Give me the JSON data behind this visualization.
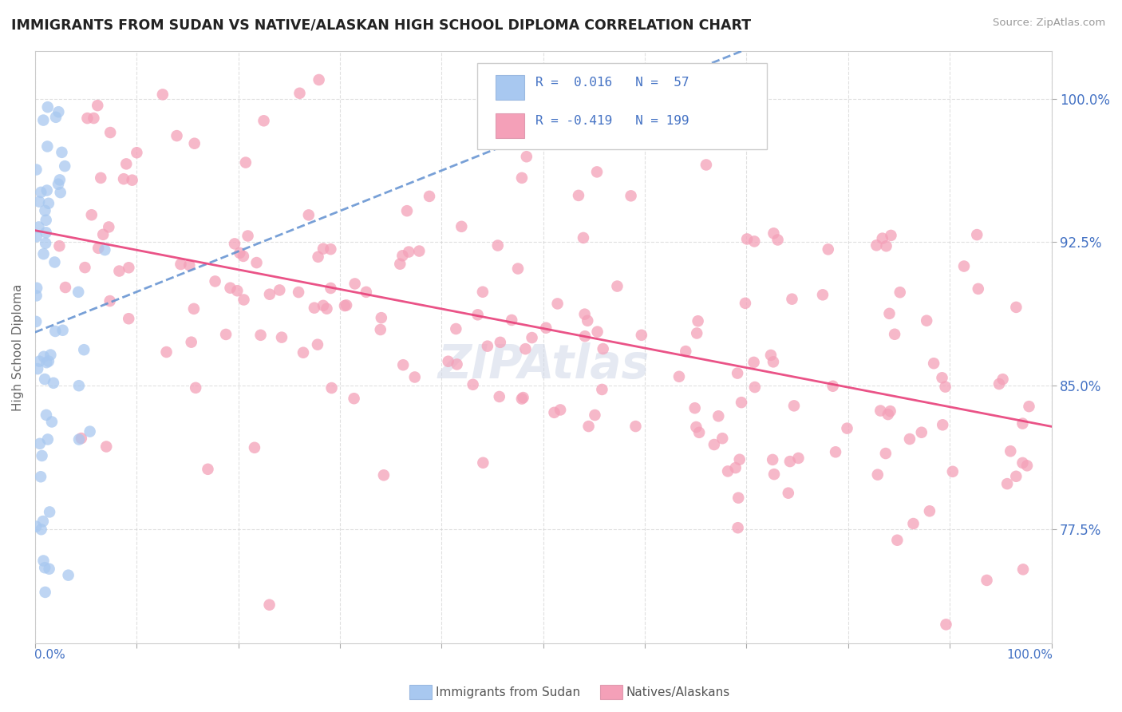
{
  "title": "IMMIGRANTS FROM SUDAN VS NATIVE/ALASKAN HIGH SCHOOL DIPLOMA CORRELATION CHART",
  "source": "Source: ZipAtlas.com",
  "ylabel": "High School Diploma",
  "ytick_labels": [
    "77.5%",
    "85.0%",
    "92.5%",
    "100.0%"
  ],
  "ytick_values": [
    0.775,
    0.85,
    0.925,
    1.0
  ],
  "xlim": [
    0.0,
    1.0
  ],
  "ylim": [
    0.715,
    1.025
  ],
  "color_blue": "#a8c8f0",
  "color_pink": "#f4a0b8",
  "line_blue_color": "#6090d0",
  "line_pink_color": "#e8407a",
  "watermark": "ZIPAtlas",
  "legend_r1_r": "0.016",
  "legend_r1_n": "57",
  "legend_r2_r": "-0.419",
  "legend_r2_n": "199"
}
